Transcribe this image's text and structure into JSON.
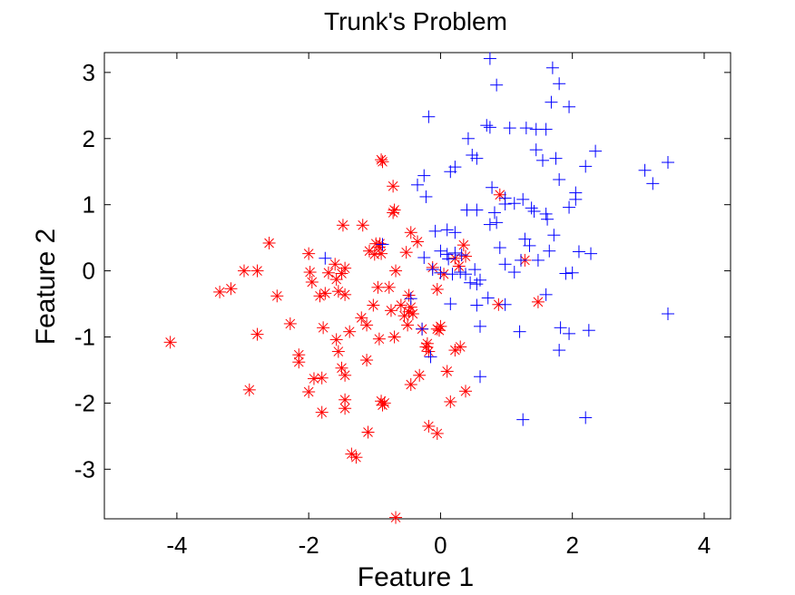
{
  "chart_data": {
    "type": "scatter",
    "title": "Trunk's Problem",
    "xlabel": "Feature 1",
    "ylabel": "Feature 2",
    "xlim": [
      -5.1,
      4.4
    ],
    "ylim": [
      -3.75,
      3.3
    ],
    "xticks": [
      -4,
      -2,
      0,
      2,
      4
    ],
    "xtick_labels": [
      "-4",
      "-2",
      "0",
      "2",
      "4"
    ],
    "yticks": [
      -3,
      -2,
      -1,
      0,
      1,
      2,
      3
    ],
    "ytick_labels": [
      "-3",
      "-2",
      "-1",
      "0",
      "1",
      "2",
      "3"
    ],
    "grid": false,
    "legend": "none",
    "series": [
      {
        "marker": "star",
        "color": "#ff0000",
        "points": [
          [
            -4.1,
            -1.08
          ],
          [
            -3.35,
            -0.32
          ],
          [
            -3.18,
            -0.27
          ],
          [
            -2.98,
            0.0
          ],
          [
            -2.78,
            0.0
          ],
          [
            -2.78,
            -0.96
          ],
          [
            -2.9,
            -1.8
          ],
          [
            -2.6,
            0.42
          ],
          [
            -2.48,
            -0.38
          ],
          [
            -2.28,
            -0.8
          ],
          [
            -2.15,
            -1.27
          ],
          [
            -2.15,
            -1.38
          ],
          [
            -2.0,
            0.26
          ],
          [
            -1.98,
            -0.02
          ],
          [
            -1.95,
            -0.17
          ],
          [
            -2.0,
            -1.83
          ],
          [
            -1.92,
            -1.63
          ],
          [
            -1.83,
            -0.38
          ],
          [
            -1.75,
            -0.34
          ],
          [
            -1.7,
            -0.03
          ],
          [
            -1.6,
            0.1
          ],
          [
            -1.58,
            -0.13
          ],
          [
            -1.55,
            -0.31
          ],
          [
            -1.5,
            -0.04
          ],
          [
            -1.45,
            0.04
          ],
          [
            -1.45,
            -0.36
          ],
          [
            -1.8,
            -1.62
          ],
          [
            -1.8,
            -2.14
          ],
          [
            -1.78,
            -0.86
          ],
          [
            -1.58,
            -1.04
          ],
          [
            -1.55,
            -1.22
          ],
          [
            -1.5,
            -1.47
          ],
          [
            -1.45,
            -1.58
          ],
          [
            -1.45,
            -1.95
          ],
          [
            -1.45,
            -2.08
          ],
          [
            -1.38,
            -0.92
          ],
          [
            -1.35,
            -2.77
          ],
          [
            -1.28,
            -2.82
          ],
          [
            -1.2,
            -0.71
          ],
          [
            -1.12,
            -0.82
          ],
          [
            -1.12,
            -1.35
          ],
          [
            -1.1,
            -2.44
          ],
          [
            -1.48,
            0.69
          ],
          [
            -1.18,
            0.69
          ],
          [
            -1.08,
            0.3
          ],
          [
            -1.0,
            0.25
          ],
          [
            -0.98,
            0.41
          ],
          [
            -0.93,
            0.36
          ],
          [
            -0.92,
            0.41
          ],
          [
            -0.9,
            0.26
          ],
          [
            -1.02,
            -0.52
          ],
          [
            -0.95,
            -0.25
          ],
          [
            -0.93,
            -1.03
          ],
          [
            -0.9,
            -1.97
          ],
          [
            -0.88,
            -2.03
          ],
          [
            -0.85,
            -2.0
          ],
          [
            -0.78,
            -0.25
          ],
          [
            -0.75,
            -0.6
          ],
          [
            -0.7,
            -1.0
          ],
          [
            -0.7,
            0.92
          ],
          [
            -0.72,
            0.88
          ],
          [
            -0.72,
            1.28
          ],
          [
            -0.9,
            1.68
          ],
          [
            -0.88,
            1.65
          ],
          [
            -0.68,
            0.0
          ],
          [
            -0.6,
            -0.52
          ],
          [
            -0.55,
            -0.68
          ],
          [
            -0.5,
            -0.82
          ],
          [
            -0.48,
            -0.62
          ],
          [
            -0.45,
            -0.55
          ],
          [
            -0.42,
            -0.65
          ],
          [
            -0.45,
            -1.72
          ],
          [
            -0.48,
            -0.37
          ],
          [
            -0.52,
            0.28
          ],
          [
            -0.45,
            0.58
          ],
          [
            -0.35,
            0.44
          ],
          [
            -0.32,
            -1.58
          ],
          [
            -0.28,
            -0.88
          ],
          [
            -0.22,
            -1.15
          ],
          [
            -0.2,
            -1.1
          ],
          [
            -0.18,
            -1.22
          ],
          [
            -0.18,
            -2.35
          ],
          [
            -0.12,
            0.05
          ],
          [
            -0.05,
            -0.28
          ],
          [
            -0.05,
            -0.88
          ],
          [
            -0.02,
            -0.9
          ],
          [
            0.0,
            -0.84
          ],
          [
            -0.05,
            -2.46
          ],
          [
            0.05,
            -0.05
          ],
          [
            0.1,
            -1.52
          ],
          [
            0.15,
            -1.98
          ],
          [
            0.22,
            0.19
          ],
          [
            0.22,
            -1.2
          ],
          [
            0.28,
            0.07
          ],
          [
            0.3,
            -1.15
          ],
          [
            0.38,
            -1.82
          ],
          [
            0.35,
            0.39
          ],
          [
            0.38,
            0.22
          ],
          [
            -0.68,
            -3.73
          ],
          [
            0.9,
            1.15
          ],
          [
            0.88,
            -0.51
          ],
          [
            1.28,
            0.16
          ],
          [
            1.48,
            -0.47
          ]
        ]
      },
      {
        "marker": "plus",
        "color": "#0000ff",
        "points": [
          [
            0.75,
            3.21
          ],
          [
            0.85,
            2.81
          ],
          [
            1.7,
            3.07
          ],
          [
            1.8,
            2.83
          ],
          [
            1.68,
            2.55
          ],
          [
            1.95,
            2.48
          ],
          [
            -0.18,
            2.33
          ],
          [
            0.7,
            2.2
          ],
          [
            0.75,
            2.17
          ],
          [
            1.05,
            2.16
          ],
          [
            1.3,
            2.16
          ],
          [
            1.45,
            2.14
          ],
          [
            1.6,
            2.14
          ],
          [
            1.75,
            1.7
          ],
          [
            1.45,
            1.83
          ],
          [
            1.55,
            1.67
          ],
          [
            2.35,
            1.81
          ],
          [
            0.42,
            2.0
          ],
          [
            0.48,
            1.75
          ],
          [
            0.55,
            1.7
          ],
          [
            0.15,
            1.5
          ],
          [
            0.22,
            1.57
          ],
          [
            -0.35,
            1.3
          ],
          [
            -0.25,
            1.44
          ],
          [
            -0.22,
            1.12
          ],
          [
            1.8,
            1.38
          ],
          [
            2.2,
            1.58
          ],
          [
            3.1,
            1.52
          ],
          [
            3.45,
            1.64
          ],
          [
            3.22,
            1.32
          ],
          [
            2.05,
            1.18
          ],
          [
            2.05,
            1.08
          ],
          [
            1.95,
            0.96
          ],
          [
            0.78,
            1.26
          ],
          [
            0.98,
            1.1
          ],
          [
            0.98,
            1.01
          ],
          [
            1.12,
            1.02
          ],
          [
            1.25,
            1.08
          ],
          [
            1.38,
            0.95
          ],
          [
            1.42,
            0.9
          ],
          [
            1.6,
            0.86
          ],
          [
            1.62,
            0.78
          ],
          [
            0.4,
            0.92
          ],
          [
            0.55,
            0.92
          ],
          [
            0.75,
            0.7
          ],
          [
            0.85,
            0.73
          ],
          [
            0.1,
            0.62
          ],
          [
            0.22,
            0.58
          ],
          [
            -0.08,
            0.6
          ],
          [
            0.82,
            0.88
          ],
          [
            1.72,
            0.54
          ],
          [
            1.28,
            0.48
          ],
          [
            1.35,
            0.38
          ],
          [
            1.65,
            0.3
          ],
          [
            0.9,
            0.35
          ],
          [
            2.1,
            0.29
          ],
          [
            2.28,
            0.26
          ],
          [
            0.0,
            0.3
          ],
          [
            0.1,
            0.25
          ],
          [
            0.22,
            0.27
          ],
          [
            0.32,
            0.24
          ],
          [
            -0.25,
            0.2
          ],
          [
            0.12,
            0.18
          ],
          [
            -0.12,
            0.02
          ],
          [
            0.0,
            -0.03
          ],
          [
            0.18,
            -0.05
          ],
          [
            0.3,
            -0.02
          ],
          [
            0.38,
            -0.05
          ],
          [
            0.52,
            0.02
          ],
          [
            0.98,
            0.1
          ],
          [
            1.12,
            -0.02
          ],
          [
            1.22,
            0.16
          ],
          [
            1.48,
            0.16
          ],
          [
            1.9,
            -0.04
          ],
          [
            2.0,
            -0.03
          ],
          [
            0.45,
            -0.18
          ],
          [
            0.55,
            -0.2
          ],
          [
            0.6,
            -0.14
          ],
          [
            0.55,
            -0.52
          ],
          [
            0.15,
            -0.5
          ],
          [
            0.98,
            -0.51
          ],
          [
            -0.45,
            -0.42
          ],
          [
            -0.28,
            -0.88
          ],
          [
            0.72,
            -0.41
          ],
          [
            -1.75,
            0.19
          ],
          [
            -0.88,
            0.4
          ],
          [
            1.6,
            -0.36
          ],
          [
            1.82,
            -0.86
          ],
          [
            1.95,
            -0.95
          ],
          [
            2.25,
            -0.9
          ],
          [
            0.6,
            -0.84
          ],
          [
            1.2,
            -0.92
          ],
          [
            1.8,
            -1.2
          ],
          [
            3.45,
            -0.65
          ],
          [
            0.6,
            -1.6
          ],
          [
            1.25,
            -2.25
          ],
          [
            2.2,
            -2.22
          ],
          [
            -0.15,
            -1.3
          ]
        ]
      }
    ]
  }
}
